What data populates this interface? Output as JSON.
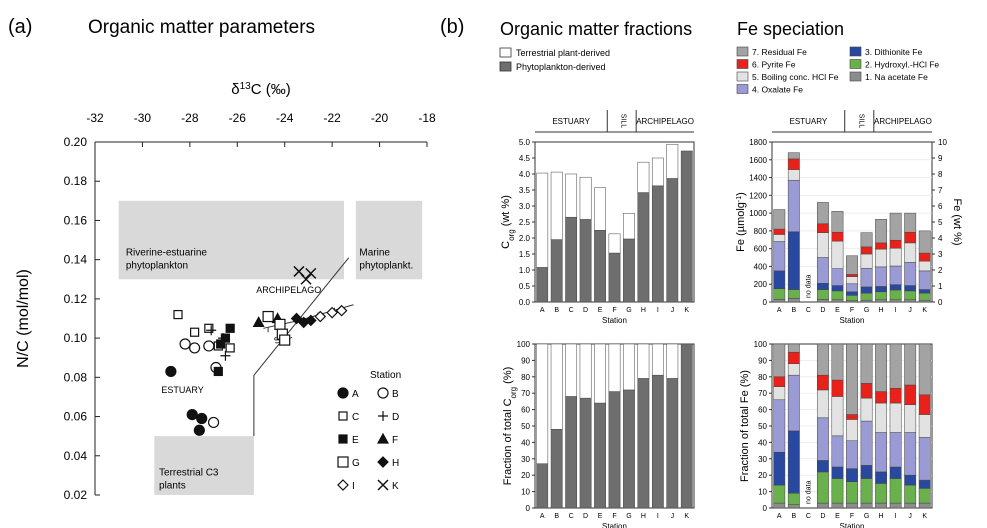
{
  "panels": {
    "a_letter": "(a)",
    "b_letter": "(b)",
    "a_title": "Organic matter parameters",
    "b_title1": "Organic matter fractions",
    "b_title2": "Fe speciation"
  },
  "chart_data": [
    {
      "id": "scatter",
      "type": "scatter",
      "xlabel": "δ13C (‰)",
      "ylabel": "N/C (mol/mol)",
      "xlim": [
        -32,
        -18
      ],
      "ylim": [
        0.02,
        0.2
      ],
      "xticks": [
        -32,
        -30,
        -28,
        -26,
        -24,
        -22,
        -20,
        -18
      ],
      "yticks": [
        0.02,
        0.04,
        0.06,
        0.08,
        0.1,
        0.12,
        0.14,
        0.16,
        0.18,
        0.2
      ],
      "x_axis_position": "top",
      "regions": [
        {
          "label": "Riverine-estuarine phytoplankton",
          "x": [
            -31,
            -21.5
          ],
          "y": [
            0.13,
            0.17
          ]
        },
        {
          "label": "Marine phytoplankt.",
          "x": [
            -21,
            -18.2
          ],
          "y": [
            0.13,
            0.17
          ]
        },
        {
          "label": "Terrestrial C3 plants",
          "x": [
            -29.5,
            -25.3
          ],
          "y": [
            0.02,
            0.05
          ]
        }
      ],
      "annotations": [
        "ESTUARY",
        "SILL",
        "ARCHIPELAGO"
      ],
      "legend_title": "Station",
      "legend": [
        {
          "station": "A",
          "marker": "circle-filled"
        },
        {
          "station": "B",
          "marker": "circle-open"
        },
        {
          "station": "C",
          "marker": "square-open"
        },
        {
          "station": "D",
          "marker": "plus"
        },
        {
          "station": "E",
          "marker": "square-filled"
        },
        {
          "station": "F",
          "marker": "triangle-filled"
        },
        {
          "station": "G",
          "marker": "square-open-large"
        },
        {
          "station": "H",
          "marker": "diamond-filled"
        },
        {
          "station": "I",
          "marker": "diamond-open"
        },
        {
          "station": "K",
          "marker": "cross"
        }
      ],
      "points": [
        {
          "station": "A",
          "x": -28.8,
          "y": 0.083
        },
        {
          "station": "A",
          "x": -27.9,
          "y": 0.061
        },
        {
          "station": "A",
          "x": -27.5,
          "y": 0.059
        },
        {
          "station": "A",
          "x": -27.6,
          "y": 0.053
        },
        {
          "station": "B",
          "x": -28.2,
          "y": 0.097
        },
        {
          "station": "B",
          "x": -27.8,
          "y": 0.095
        },
        {
          "station": "B",
          "x": -27.2,
          "y": 0.096
        },
        {
          "station": "B",
          "x": -26.9,
          "y": 0.085
        },
        {
          "station": "B",
          "x": -27.0,
          "y": 0.057
        },
        {
          "station": "C",
          "x": -28.5,
          "y": 0.112
        },
        {
          "station": "C",
          "x": -27.8,
          "y": 0.103
        },
        {
          "station": "C",
          "x": -27.2,
          "y": 0.105
        },
        {
          "station": "C",
          "x": -26.8,
          "y": 0.096
        },
        {
          "station": "C",
          "x": -26.3,
          "y": 0.095
        },
        {
          "station": "D",
          "x": -27.1,
          "y": 0.104
        },
        {
          "station": "D",
          "x": -26.6,
          "y": 0.1
        },
        {
          "station": "D",
          "x": -26.5,
          "y": 0.091
        },
        {
          "station": "E",
          "x": -26.3,
          "y": 0.105
        },
        {
          "station": "E",
          "x": -26.5,
          "y": 0.1
        },
        {
          "station": "E",
          "x": -26.7,
          "y": 0.097
        },
        {
          "station": "E",
          "x": -26.8,
          "y": 0.083
        },
        {
          "station": "F",
          "x": -25.1,
          "y": 0.108
        },
        {
          "station": "F",
          "x": -24.3,
          "y": 0.11
        },
        {
          "station": "G",
          "x": -24.7,
          "y": 0.111
        },
        {
          "station": "G",
          "x": -24.2,
          "y": 0.107
        },
        {
          "station": "G",
          "x": -24.1,
          "y": 0.102
        },
        {
          "station": "G",
          "x": -24.0,
          "y": 0.099
        },
        {
          "station": "H",
          "x": -23.5,
          "y": 0.11
        },
        {
          "station": "H",
          "x": -23.2,
          "y": 0.108
        },
        {
          "station": "H",
          "x": -22.9,
          "y": 0.109
        },
        {
          "station": "I",
          "x": -22.5,
          "y": 0.111
        },
        {
          "station": "I",
          "x": -22.0,
          "y": 0.113
        },
        {
          "station": "I",
          "x": -21.6,
          "y": 0.114
        },
        {
          "station": "K",
          "x": -23.4,
          "y": 0.134
        },
        {
          "station": "K",
          "x": -23.1,
          "y": 0.13
        },
        {
          "station": "K",
          "x": -22.9,
          "y": 0.133
        }
      ]
    },
    {
      "id": "corg",
      "type": "bar",
      "ylabel": "Corg (wt %)",
      "xlabel": "Station",
      "ylim": [
        0,
        5
      ],
      "yticks": [
        0,
        0.5,
        1,
        1.5,
        2,
        2.5,
        3,
        3.5,
        4,
        4.5,
        5
      ],
      "categories": [
        "A",
        "B",
        "C",
        "D",
        "E",
        "F",
        "G",
        "H",
        "I",
        "J",
        "K"
      ],
      "zones": [
        "ESTUARY",
        "SILL",
        "ARCHIPELAGO"
      ],
      "legend": [
        "Terrestrial plant-derived",
        "Phytoplankton-derived"
      ],
      "series": [
        {
          "name": "Phytoplankton-derived",
          "color": "#6e6e6e",
          "values": [
            1.08,
            1.95,
            2.65,
            2.58,
            2.24,
            1.53,
            1.97,
            3.42,
            3.63,
            3.86,
            4.72
          ]
        },
        {
          "name": "Terrestrial plant-derived",
          "color": "#ffffff",
          "values": [
            2.95,
            2.11,
            1.35,
            1.32,
            1.33,
            0.6,
            0.8,
            0.95,
            0.87,
            1.07,
            0
          ]
        }
      ]
    },
    {
      "id": "corg_frac",
      "type": "bar",
      "ylabel": "Fraction of total Corg (%)",
      "xlabel": "Station",
      "ylim": [
        0,
        100
      ],
      "yticks": [
        0,
        10,
        20,
        30,
        40,
        50,
        60,
        70,
        80,
        90,
        100
      ],
      "categories": [
        "A",
        "B",
        "C",
        "D",
        "E",
        "F",
        "G",
        "H",
        "I",
        "J",
        "K"
      ],
      "series": [
        {
          "name": "Phytoplankton-derived",
          "color": "#6e6e6e",
          "values": [
            27,
            48,
            68,
            67,
            64,
            71,
            72,
            79,
            81,
            79,
            100
          ]
        },
        {
          "name": "Terrestrial plant-derived",
          "color": "#ffffff",
          "values": [
            73,
            52,
            32,
            33,
            36,
            29,
            28,
            21,
            19,
            21,
            0
          ]
        }
      ]
    },
    {
      "id": "fe",
      "type": "bar",
      "ylabel": "Fe (µmolg-1)",
      "y2label": "Fe (wt %)",
      "xlabel": "Station",
      "ylim": [
        0,
        1800
      ],
      "yticks": [
        0,
        200,
        400,
        600,
        800,
        1000,
        1200,
        1400,
        1600,
        1800
      ],
      "y2ticks": [
        0,
        1,
        2,
        3,
        4,
        5,
        6,
        7,
        8,
        9,
        10
      ],
      "categories": [
        "A",
        "B",
        "C",
        "D",
        "E",
        "F",
        "G",
        "H",
        "I",
        "J",
        "K"
      ],
      "zones": [
        "ESTUARY",
        "SILL",
        "ARCHIPELAGO"
      ],
      "no_data": "no data",
      "legend": [
        "7. Residual Fe",
        "6. Pyrite Fe",
        "5. Boiling conc. HCl Fe",
        "4. Oxalate Fe",
        "3. Dithionite Fe",
        "2. Hydroxyl.-HCl Fe",
        "1. Na acetate Fe"
      ],
      "series": [
        {
          "name": "1. Na acetate Fe",
          "color": "#8c8c8c",
          "values": [
            30,
            40,
            0,
            30,
            25,
            15,
            20,
            25,
            25,
            25,
            20
          ]
        },
        {
          "name": "2. Hydroxyl.-HCl Fe",
          "color": "#6ab04c",
          "values": [
            120,
            100,
            0,
            110,
            100,
            60,
            80,
            90,
            110,
            100,
            80
          ]
        },
        {
          "name": "3. Dithionite Fe",
          "color": "#2948a0",
          "values": [
            200,
            650,
            0,
            70,
            60,
            40,
            70,
            60,
            60,
            60,
            40
          ]
        },
        {
          "name": "4. Oxalate Fe",
          "color": "#9a9ad4",
          "values": [
            330,
            580,
            0,
            290,
            190,
            90,
            210,
            220,
            210,
            260,
            210
          ]
        },
        {
          "name": "5. Boiling conc. HCl Fe",
          "color": "#e2e2e2",
          "values": [
            80,
            120,
            0,
            280,
            310,
            80,
            160,
            200,
            200,
            220,
            110
          ]
        },
        {
          "name": "6. Pyrite Fe",
          "color": "#e8221a",
          "values": [
            60,
            120,
            0,
            100,
            100,
            25,
            80,
            70,
            90,
            120,
            90
          ]
        },
        {
          "name": "7. Residual Fe",
          "color": "#a3a3a3",
          "values": [
            220,
            70,
            0,
            240,
            235,
            210,
            160,
            265,
            305,
            215,
            250
          ]
        }
      ]
    },
    {
      "id": "fe_frac",
      "type": "bar",
      "ylabel": "Fraction of total Fe (%)",
      "xlabel": "Station",
      "ylim": [
        0,
        100
      ],
      "yticks": [
        0,
        10,
        20,
        30,
        40,
        50,
        60,
        70,
        80,
        90,
        100
      ],
      "categories": [
        "A",
        "B",
        "C",
        "D",
        "E",
        "F",
        "G",
        "H",
        "I",
        "J",
        "K"
      ],
      "no_data": "no data",
      "series": [
        {
          "name": "1. Na acetate Fe",
          "values": [
            3,
            2,
            0,
            3,
            3,
            3,
            3,
            3,
            3,
            3,
            3
          ]
        },
        {
          "name": "2. Hydroxyl.-HCl Fe",
          "values": [
            11,
            7,
            0,
            19,
            15,
            13,
            15,
            12,
            15,
            11,
            9
          ]
        },
        {
          "name": "3. Dithionite Fe",
          "values": [
            20,
            38,
            0,
            7,
            7,
            8,
            8,
            7,
            7,
            6,
            5
          ]
        },
        {
          "name": "4. Oxalate Fe",
          "values": [
            32,
            34,
            0,
            26,
            19,
            17,
            27,
            24,
            21,
            26,
            26
          ]
        },
        {
          "name": "5. Boiling conc. HCl Fe",
          "values": [
            8,
            7,
            0,
            17,
            24,
            13,
            14,
            18,
            18,
            17,
            14
          ]
        },
        {
          "name": "6. Pyrite Fe",
          "values": [
            6,
            7,
            0,
            9,
            10,
            3,
            9,
            7,
            9,
            12,
            12
          ]
        },
        {
          "name": "7. Residual Fe",
          "values": [
            20,
            5,
            0,
            19,
            22,
            43,
            24,
            29,
            27,
            25,
            31
          ]
        }
      ]
    }
  ]
}
